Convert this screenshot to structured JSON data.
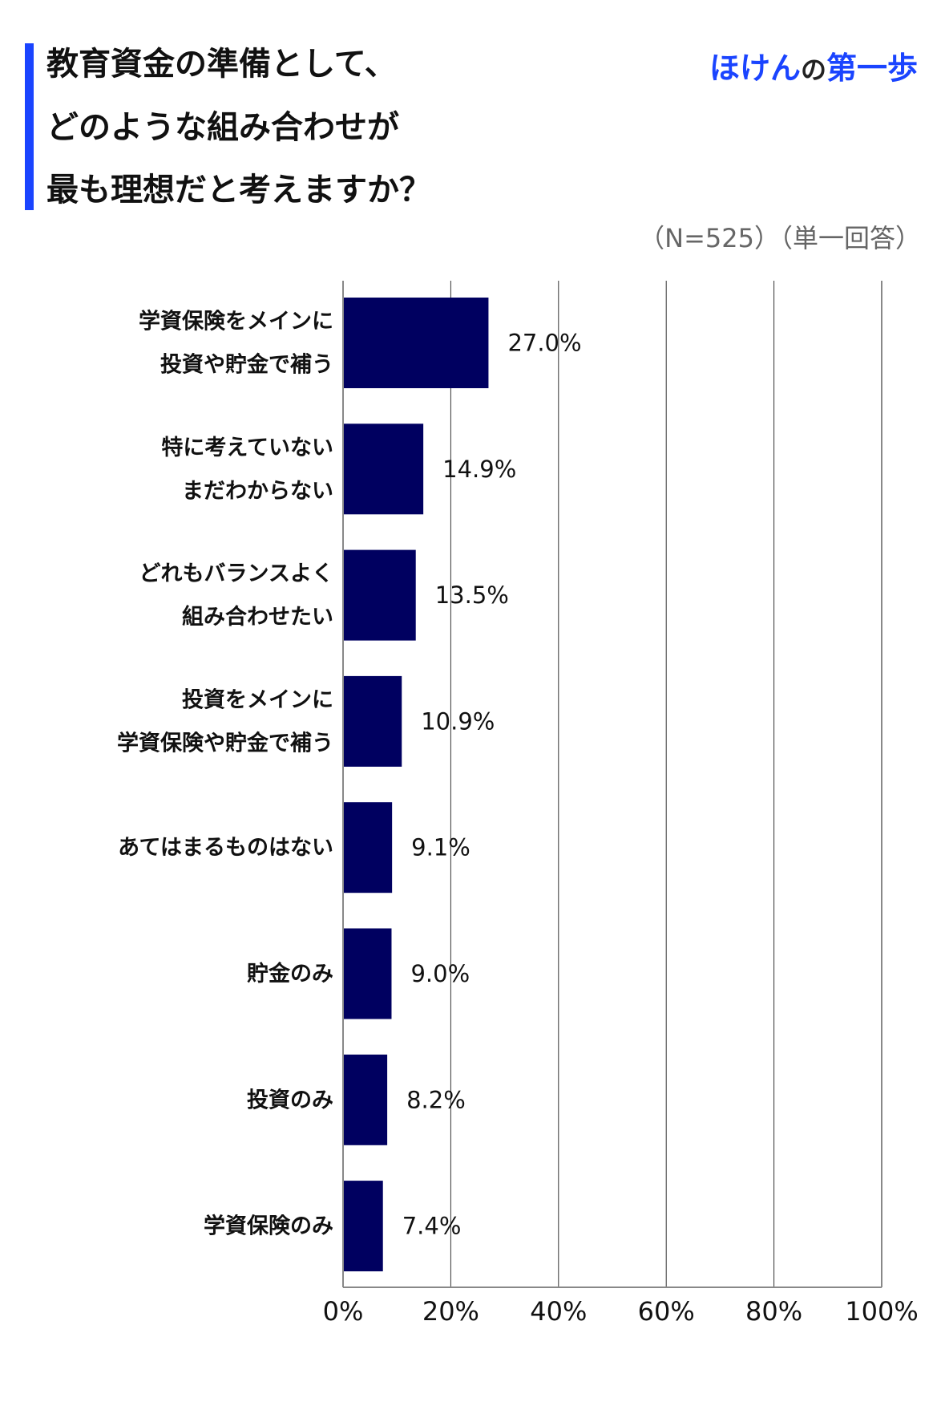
{
  "header": {
    "title_lines": [
      "教育資金の準備として、",
      "どのような組み合わせが",
      "最も理想だと考えますか？"
    ],
    "logo": {
      "part1": "ほけん",
      "part2": "の",
      "part3": "第一歩"
    },
    "sample_note": "（N=525）（単一回答）"
  },
  "colors": {
    "accent": "#1a44ff",
    "bar": "#000060",
    "gridline": "#333333",
    "axis": "#888888"
  },
  "chart_data": {
    "type": "bar",
    "orientation": "horizontal",
    "categories": [
      [
        "学資保険をメインに",
        "投資や貯金で補う"
      ],
      [
        "特に考えていない",
        "まだわからない"
      ],
      [
        "どれもバランスよく",
        "組み合わせたい"
      ],
      [
        "投資をメインに",
        "学資保険や貯金で補う"
      ],
      [
        "あてはまるものはない"
      ],
      [
        "貯金のみ"
      ],
      [
        "投資のみ"
      ],
      [
        "学資保険のみ"
      ]
    ],
    "values": [
      27.0,
      14.9,
      13.5,
      10.9,
      9.1,
      9.0,
      8.2,
      7.4
    ],
    "value_labels": [
      "27.0%",
      "14.9%",
      "13.5%",
      "10.9%",
      "9.1%",
      "9.0%",
      "8.2%",
      "7.4%"
    ],
    "xlim": [
      0,
      100
    ],
    "xticks": [
      0,
      20,
      40,
      60,
      80,
      100
    ],
    "xtick_labels": [
      "0%",
      "20%",
      "40%",
      "60%",
      "80%",
      "100%"
    ],
    "grid": true,
    "legend": "none"
  }
}
